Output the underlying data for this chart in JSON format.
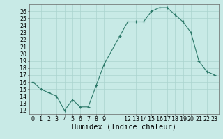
{
  "x_values": [
    0,
    1,
    2,
    3,
    4,
    5,
    6,
    7,
    8,
    9,
    11,
    12,
    13,
    14,
    15,
    16,
    17,
    18,
    19,
    20,
    21,
    22,
    23
  ],
  "y_values": [
    16,
    15,
    14.5,
    14,
    12,
    13.5,
    12.5,
    12.5,
    15.5,
    18.5,
    22.5,
    24.5,
    24.5,
    24.5,
    26,
    26.5,
    26.5,
    25.5,
    24.5,
    23,
    19,
    17.5,
    17
  ],
  "xlabel": "Humidex (Indice chaleur)",
  "ylim": [
    11.5,
    27
  ],
  "xlim": [
    -0.5,
    23.5
  ],
  "yticks": [
    12,
    13,
    14,
    15,
    16,
    17,
    18,
    19,
    20,
    21,
    22,
    23,
    24,
    25,
    26
  ],
  "xticks": [
    0,
    1,
    2,
    3,
    4,
    5,
    6,
    7,
    8,
    9,
    12,
    13,
    14,
    15,
    16,
    17,
    18,
    19,
    20,
    21,
    22,
    23
  ],
  "line_color": "#2d7a6a",
  "bg_color": "#c8eae6",
  "grid_color": "#aad4ce",
  "xlabel_fontsize": 7.5,
  "ytick_fontsize": 6,
  "xtick_fontsize": 6
}
